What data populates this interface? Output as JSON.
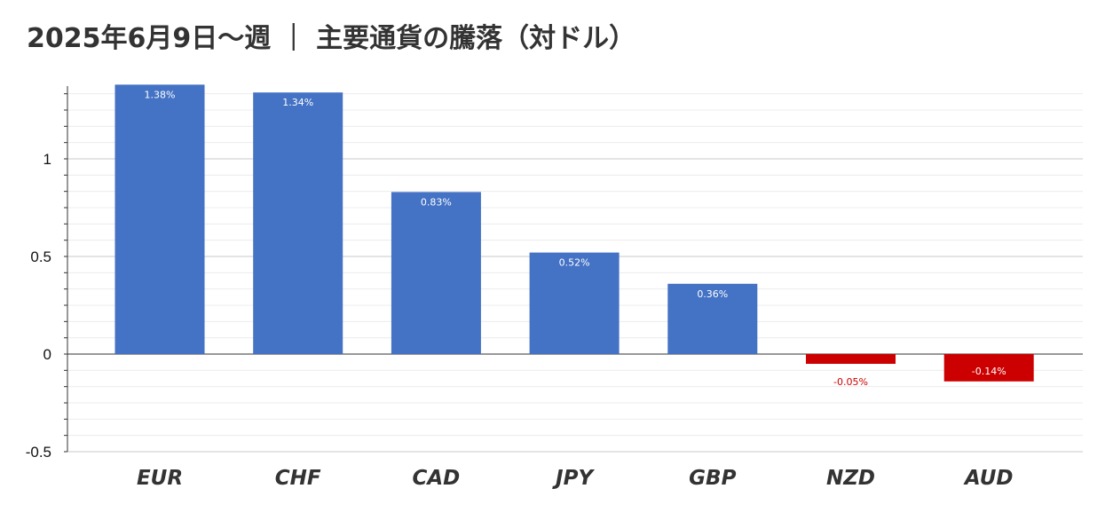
{
  "chart_data": {
    "type": "bar",
    "title": "2025年6月9日～週 ｜ 主要通貨の騰落（対ドル）",
    "categories": [
      "EUR",
      "CHF",
      "CAD",
      "JPY",
      "GBP",
      "NZD",
      "AUD"
    ],
    "values": [
      1.38,
      1.34,
      0.83,
      0.52,
      0.36,
      -0.05,
      -0.14
    ],
    "data_labels": [
      "1.38%",
      "1.34%",
      "0.83%",
      "0.52%",
      "0.36%",
      "-0.05%",
      "-0.14%"
    ],
    "xlabel": "",
    "ylabel": "",
    "ylim": [
      -0.5,
      1.38
    ],
    "yticks": [
      -0.5,
      0,
      0.5,
      1
    ],
    "ytick_labels": [
      "-0.5",
      "0",
      "0.5",
      "1"
    ],
    "grid": true,
    "legend": "none",
    "colors": {
      "positive": "#4472c4",
      "negative": "#cc0000",
      "positive_label": "#ffffff",
      "negative_label": "#cc0000",
      "grid": "#d9d9d9"
    }
  }
}
